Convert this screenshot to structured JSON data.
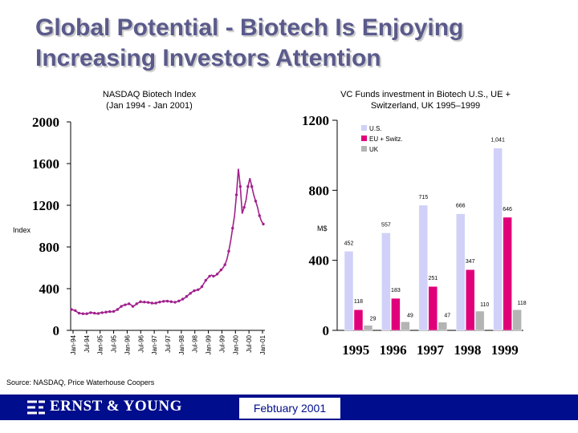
{
  "slide": {
    "title": "Global Potential - Biotech Is Enjoying Increasing Investors Attention",
    "source": "Source: NASDAQ, Price Waterhouse Coopers",
    "footer_date": "Febtuary 2001",
    "logo_text": "ERNST & YOUNG",
    "colors": {
      "title": "#5a5a8c",
      "footer": "#000d8c",
      "line": "#a0208c"
    }
  },
  "chart_data": [
    {
      "type": "line",
      "title": "NASDAQ Biotech Index",
      "subtitle": "(Jan 1994 - Jan 2001)",
      "ylabel": "Index",
      "ylim": [
        0,
        2000
      ],
      "yticks": [
        0,
        400,
        800,
        1200,
        1600,
        2000
      ],
      "xticks": [
        "Jan-94",
        "Jul-94",
        "Jan-95",
        "Jul-95",
        "Jan-96",
        "Jul-96",
        "Jan-97",
        "Jul-97",
        "Jan-98",
        "Jul-98",
        "Jan-99",
        "Jul-99",
        "Jan-00",
        "Jul-00",
        "Jan-01"
      ],
      "series": [
        {
          "values": [
            200,
            195,
            190,
            175,
            165,
            162,
            160,
            158,
            160,
            165,
            170,
            168,
            165,
            160,
            162,
            168,
            170,
            172,
            175,
            178,
            180,
            178,
            182,
            190,
            200,
            215,
            230,
            240,
            245,
            250,
            255,
            245,
            230,
            240,
            255,
            265,
            275,
            270,
            272,
            270,
            268,
            265,
            262,
            258,
            262,
            268,
            272,
            275,
            278,
            282,
            280,
            278,
            275,
            272,
            270,
            275,
            282,
            290,
            300,
            310,
            325,
            340,
            355,
            370,
            380,
            385,
            390,
            400,
            420,
            450,
            480,
            500,
            520,
            530,
            520,
            525,
            540,
            560,
            580,
            600,
            630,
            680,
            760,
            860,
            980,
            1100,
            1300,
            1550,
            1380,
            1120,
            1180,
            1250,
            1380,
            1460,
            1380,
            1300,
            1240,
            1180,
            1100,
            1050,
            1020
          ]
        }
      ]
    },
    {
      "type": "bar",
      "title": "VC Funds investment in Biotech U.S., UE + Switzerland, UK 1995–1999",
      "ylabel": "M$",
      "ylim": [
        0,
        1200
      ],
      "yticks": [
        0,
        400,
        800,
        1200
      ],
      "categories": [
        "1995",
        "1996",
        "1997",
        "1998",
        "1999"
      ],
      "legend": "top-left",
      "series": [
        {
          "name": "U.S.",
          "color": "#d0d0f8",
          "values": [
            452,
            557,
            715,
            666,
            1041
          ],
          "labels": [
            "452",
            "557",
            "715",
            "666",
            "1,041"
          ]
        },
        {
          "name": "EU + Switz.",
          "color": "#e0007a",
          "values": [
            118,
            183,
            251,
            347,
            646
          ],
          "labels": [
            "118",
            "183",
            "251",
            "347",
            "646"
          ]
        },
        {
          "name": "UK",
          "color": "#b4b4b4",
          "values": [
            29,
            49,
            47,
            110,
            118
          ],
          "labels": [
            "29",
            "49",
            "47",
            "110",
            "118"
          ]
        }
      ]
    }
  ]
}
